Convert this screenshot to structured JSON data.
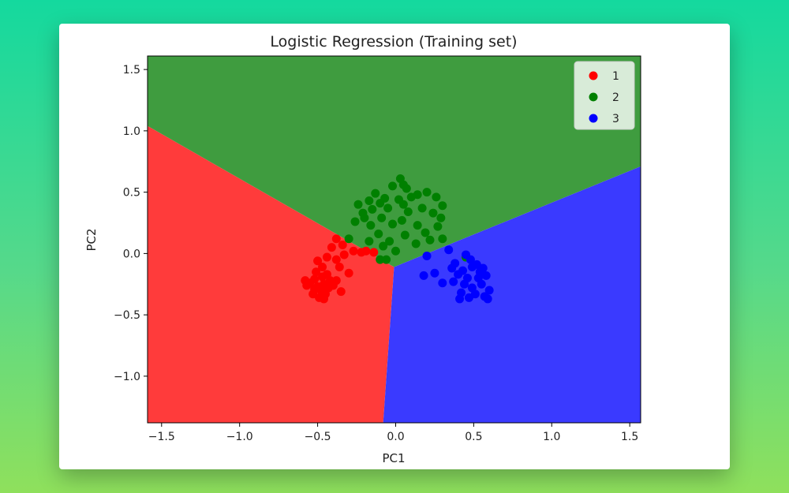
{
  "chart_data": {
    "type": "scatter",
    "title": "Logistic Regression (Training set)",
    "xlabel": "PC1",
    "ylabel": "PC2",
    "xlim": [
      -1.59,
      1.57
    ],
    "ylim": [
      -1.38,
      1.61
    ],
    "xticks": [
      -1.5,
      -1.0,
      -0.5,
      0.0,
      0.5,
      1.0,
      1.5
    ],
    "xtick_labels": [
      "−1.5",
      "−1.0",
      "−0.5",
      "0.0",
      "0.5",
      "1.0",
      "1.5"
    ],
    "yticks": [
      -1.0,
      -0.5,
      0.0,
      0.5,
      1.0,
      1.5
    ],
    "ytick_labels": [
      "−1.0",
      "−0.5",
      "0.0",
      "0.5",
      "1.0",
      "1.5"
    ],
    "grid": false,
    "legend_position": "top-right",
    "decision_regions": [
      {
        "class": "1",
        "color": "#ff3b3b",
        "polygon": [
          [
            -1.59,
            -1.38
          ],
          [
            -1.59,
            1.04
          ],
          [
            -0.01,
            -0.11
          ],
          [
            -0.08,
            -1.38
          ]
        ]
      },
      {
        "class": "2",
        "color": "#3f9c3f",
        "polygon": [
          [
            -1.59,
            1.04
          ],
          [
            -1.59,
            1.61
          ],
          [
            1.57,
            1.61
          ],
          [
            1.57,
            0.71
          ],
          [
            -0.01,
            -0.11
          ]
        ]
      },
      {
        "class": "3",
        "color": "#3a3aff",
        "polygon": [
          [
            -0.01,
            -0.11
          ],
          [
            1.57,
            0.71
          ],
          [
            1.57,
            -1.38
          ],
          [
            -0.08,
            -1.38
          ]
        ]
      }
    ],
    "series": [
      {
        "name": "1",
        "color": "#ff0000",
        "points": [
          [
            -0.55,
            -0.24
          ],
          [
            -0.52,
            -0.21
          ],
          [
            -0.5,
            -0.27
          ],
          [
            -0.48,
            -0.3
          ],
          [
            -0.46,
            -0.25
          ],
          [
            -0.53,
            -0.33
          ],
          [
            -0.49,
            -0.36
          ],
          [
            -0.45,
            -0.33
          ],
          [
            -0.43,
            -0.28
          ],
          [
            -0.47,
            -0.19
          ],
          [
            -0.44,
            -0.17
          ],
          [
            -0.51,
            -0.15
          ],
          [
            -0.42,
            -0.22
          ],
          [
            -0.4,
            -0.26
          ],
          [
            -0.57,
            -0.26
          ],
          [
            -0.58,
            -0.22
          ],
          [
            -0.5,
            -0.06
          ],
          [
            -0.44,
            -0.03
          ],
          [
            -0.38,
            -0.05
          ],
          [
            -0.36,
            -0.11
          ],
          [
            -0.33,
            -0.01
          ],
          [
            -0.3,
            -0.16
          ],
          [
            -0.27,
            0.02
          ],
          [
            -0.22,
            0.01
          ],
          [
            -0.19,
            0.02
          ],
          [
            -0.14,
            0.01
          ],
          [
            -0.34,
            0.07
          ],
          [
            -0.38,
            0.12
          ],
          [
            -0.41,
            0.05
          ],
          [
            -0.47,
            -0.11
          ],
          [
            -0.35,
            -0.31
          ],
          [
            -0.38,
            -0.22
          ],
          [
            -0.46,
            -0.37
          ],
          [
            -0.52,
            -0.29
          ]
        ]
      },
      {
        "name": "2",
        "color": "#008000",
        "points": [
          [
            0.03,
            0.61
          ],
          [
            0.05,
            0.56
          ],
          [
            -0.02,
            0.55
          ],
          [
            0.07,
            0.53
          ],
          [
            -0.13,
            0.49
          ],
          [
            0.1,
            0.46
          ],
          [
            -0.07,
            0.45
          ],
          [
            0.02,
            0.44
          ],
          [
            -0.17,
            0.43
          ],
          [
            0.14,
            0.48
          ],
          [
            0.2,
            0.5
          ],
          [
            0.26,
            0.46
          ],
          [
            0.3,
            0.39
          ],
          [
            -0.24,
            0.4
          ],
          [
            -0.1,
            0.41
          ],
          [
            0.05,
            0.4
          ],
          [
            0.17,
            0.37
          ],
          [
            0.24,
            0.33
          ],
          [
            0.29,
            0.29
          ],
          [
            -0.21,
            0.33
          ],
          [
            -0.15,
            0.36
          ],
          [
            -0.05,
            0.37
          ],
          [
            0.08,
            0.34
          ],
          [
            -0.09,
            0.29
          ],
          [
            0.04,
            0.27
          ],
          [
            -0.26,
            0.26
          ],
          [
            0.14,
            0.23
          ],
          [
            -0.02,
            0.24
          ],
          [
            -0.16,
            0.23
          ],
          [
            0.27,
            0.22
          ],
          [
            0.19,
            0.17
          ],
          [
            -0.11,
            0.16
          ],
          [
            0.06,
            0.15
          ],
          [
            -0.04,
            0.1
          ],
          [
            0.13,
            0.08
          ],
          [
            -0.17,
            0.1
          ],
          [
            0.3,
            0.12
          ],
          [
            -0.3,
            0.12
          ],
          [
            -0.08,
            0.06
          ],
          [
            0.0,
            0.02
          ],
          [
            -0.1,
            -0.05
          ],
          [
            -0.06,
            -0.05
          ],
          [
            0.45,
            -0.03
          ],
          [
            -0.2,
            0.29
          ],
          [
            0.22,
            0.11
          ]
        ]
      },
      {
        "name": "3",
        "color": "#0000ff",
        "points": [
          [
            0.2,
            -0.02
          ],
          [
            0.34,
            0.03
          ],
          [
            0.45,
            -0.01
          ],
          [
            0.38,
            -0.08
          ],
          [
            0.49,
            -0.11
          ],
          [
            0.43,
            -0.14
          ],
          [
            0.52,
            -0.09
          ],
          [
            0.56,
            -0.12
          ],
          [
            0.4,
            -0.17
          ],
          [
            0.46,
            -0.2
          ],
          [
            0.53,
            -0.2
          ],
          [
            0.58,
            -0.18
          ],
          [
            0.37,
            -0.23
          ],
          [
            0.44,
            -0.25
          ],
          [
            0.49,
            -0.28
          ],
          [
            0.55,
            -0.25
          ],
          [
            0.6,
            -0.3
          ],
          [
            0.42,
            -0.32
          ],
          [
            0.51,
            -0.33
          ],
          [
            0.57,
            -0.35
          ],
          [
            0.47,
            -0.36
          ],
          [
            0.41,
            -0.37
          ],
          [
            0.59,
            -0.37
          ],
          [
            0.25,
            -0.16
          ],
          [
            0.3,
            -0.24
          ],
          [
            0.18,
            -0.18
          ],
          [
            0.54,
            -0.15
          ],
          [
            0.48,
            -0.05
          ],
          [
            0.36,
            -0.12
          ]
        ]
      }
    ]
  }
}
